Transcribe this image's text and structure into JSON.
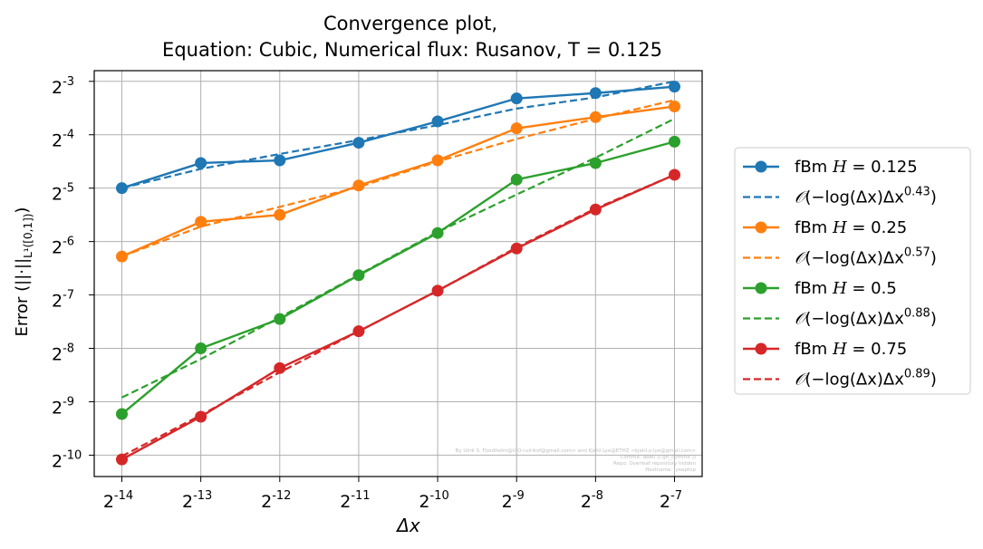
{
  "chart_data": {
    "type": "line",
    "title_line1": "Convergence plot,",
    "title_line2": "Equation: Cubic, Numerical flux: Rusanov, T = 0.125",
    "xlabel": "Δx",
    "ylabel": "Error (||·||L¹([0,1]))",
    "xscale": "log2",
    "yscale": "log2",
    "grid": true,
    "legend_position": "outside-right",
    "x_exponents": [
      -14,
      -13,
      -12,
      -11,
      -10,
      -9,
      -8,
      -7
    ],
    "x_tick_labels": [
      "-14",
      "-13",
      "-12",
      "-11",
      "-10",
      "-9",
      "-8",
      "-7"
    ],
    "y_tick_exponents": [
      -3,
      -4,
      -5,
      -6,
      -7,
      -8,
      -9,
      -10
    ],
    "y_tick_labels": [
      "-3",
      "-4",
      "-5",
      "-6",
      "-7",
      "-8",
      "-9",
      "-10"
    ],
    "xlim_exp": [
      -14.35,
      -6.65
    ],
    "ylim_exp": [
      -10.4,
      -2.8
    ],
    "series": [
      {
        "name": "fBm H = 0.125",
        "hvalue": "0.125",
        "color": "#1f77b4",
        "y_exp": [
          -5.0,
          -4.53,
          -4.48,
          -4.15,
          -3.75,
          -3.32,
          -3.22,
          -3.1
        ],
        "fit_y_exp": [
          -5.0,
          -4.64,
          -4.36,
          -4.1,
          -3.82,
          -3.51,
          -3.3,
          -3.0
        ],
        "fit_exponent": "0.43"
      },
      {
        "name": "fBm H = 0.25",
        "hvalue": "0.25",
        "color": "#ff7f0e",
        "y_exp": [
          -6.28,
          -5.63,
          -5.5,
          -4.95,
          -4.48,
          -3.88,
          -3.67,
          -3.47
        ],
        "fit_y_exp": [
          -6.28,
          -5.72,
          -5.35,
          -4.98,
          -4.5,
          -4.08,
          -3.7,
          -3.35
        ],
        "fit_exponent": "0.57"
      },
      {
        "name": "fBm H = 0.5",
        "hvalue": "0.5",
        "color": "#2ca02c",
        "y_exp": [
          -9.23,
          -8.0,
          -7.45,
          -6.63,
          -5.84,
          -4.84,
          -4.53,
          -4.13
        ],
        "fit_y_exp": [
          -8.92,
          -8.2,
          -7.42,
          -6.62,
          -5.82,
          -5.12,
          -4.43,
          -3.7
        ],
        "fit_exponent": "0.88"
      },
      {
        "name": "fBm H = 0.75",
        "hvalue": "0.75",
        "color": "#d62728",
        "y_exp": [
          -10.08,
          -9.28,
          -8.37,
          -7.68,
          -6.92,
          -6.13,
          -5.4,
          -4.75
        ],
        "fit_y_exp": [
          -10.02,
          -9.25,
          -8.45,
          -7.68,
          -6.92,
          -6.11,
          -5.38,
          -4.75
        ],
        "fit_exponent": "0.89"
      }
    ]
  },
  "watermark": {
    "line1": "By Ulrik S. Fjordholm@UiO<ulriksf@gmail.com> and Kjetil Lye@ETHZ <kjetil.o.lye@gmail.com>",
    "line2": "Commit: abe0 (( git_commit ))",
    "line3": "Repo: Overleaf repository hidden",
    "line4": "Hostname: lyeaptop"
  }
}
